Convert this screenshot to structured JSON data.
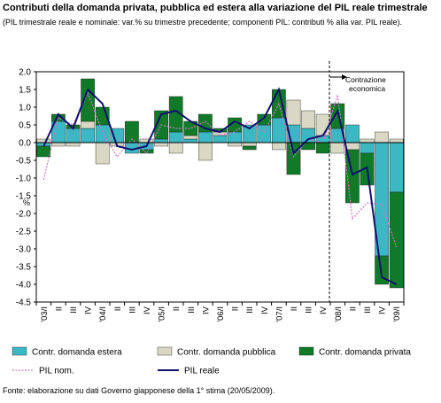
{
  "chart_data": {
    "type": "bar",
    "title": "Contributi della domanda privata, pubblica ed estera alla variazione del PIL reale trimestrale",
    "subtitle": "(PIL trimestrale reale e nominale: var.% su trimestre precedente; componenti PIL: contributi % alla var. PIL reale).",
    "ylabel": "%",
    "ylim": [
      -4.5,
      2.0
    ],
    "yticks": [
      "2.0",
      "1.5",
      "1.0",
      "0.5",
      "0.0",
      "-0.5",
      "-1.0",
      "-1.5",
      "-2.0",
      "-2.5",
      "-3.0",
      "-3.5",
      "-4.0",
      "-4.5"
    ],
    "categories": [
      "'03/I",
      "II",
      "III",
      "IV",
      "'04/I",
      "II",
      "III",
      "IV",
      "'05/I",
      "II",
      "III",
      "IV",
      "'06/I",
      "II",
      "III",
      "IV",
      "'07/I",
      "II",
      "III",
      "IV",
      "'08/I",
      "II",
      "III",
      "IV",
      "'09/I"
    ],
    "series": [
      {
        "name": "Contr. domanda estera",
        "color": "#3cb8c4",
        "kind": "bar",
        "values": [
          -0.1,
          0.6,
          0.4,
          0.4,
          0.5,
          0.4,
          -0.3,
          -0.2,
          0.1,
          0.3,
          0.1,
          0.3,
          0.2,
          0.3,
          0.5,
          0.5,
          0.7,
          0.5,
          0.4,
          0.2,
          0.4,
          0.5,
          -0.3,
          -3.2,
          -1.4
        ]
      },
      {
        "name": "Contr. domanda pubblica",
        "color": "#d8d8c4",
        "kind": "bar",
        "values": [
          0.1,
          -0.1,
          -0.1,
          0.2,
          -0.6,
          -0.1,
          0.0,
          0.1,
          -0.1,
          -0.3,
          0.1,
          -0.5,
          0.1,
          -0.1,
          -0.1,
          0.0,
          -0.2,
          0.7,
          0.5,
          0.6,
          -0.3,
          -0.2,
          0.1,
          0.3,
          0.1
        ]
      },
      {
        "name": "Contr. domanda privata",
        "color": "#107a28",
        "kind": "bar",
        "values": [
          -0.3,
          0.2,
          0.1,
          1.2,
          0.5,
          0.0,
          0.6,
          -0.1,
          0.8,
          1.0,
          0.4,
          0.5,
          0.1,
          0.4,
          -0.1,
          0.3,
          0.8,
          -0.9,
          -0.2,
          -0.3,
          0.7,
          -1.5,
          -0.9,
          -0.8,
          -2.7
        ]
      },
      {
        "name": "PIL nom.",
        "color": "#c878c8",
        "kind": "line",
        "values": [
          -1.05,
          0.7,
          0.5,
          1.4,
          0.3,
          -0.4,
          0.1,
          -0.3,
          0.5,
          0.4,
          0.4,
          0.6,
          0.2,
          0.3,
          0.6,
          0.3,
          1.1,
          -0.4,
          0.1,
          0.0,
          1.35,
          -2.15,
          -1.7,
          -1.75,
          -2.95
        ]
      },
      {
        "name": "PIL reale",
        "color": "#101070",
        "kind": "line",
        "values": [
          -0.1,
          0.8,
          0.4,
          1.5,
          1.1,
          -0.1,
          -0.2,
          -0.1,
          0.8,
          0.9,
          0.6,
          0.4,
          0.3,
          0.6,
          0.4,
          0.7,
          1.5,
          -0.3,
          0.1,
          0.2,
          0.9,
          -0.9,
          -0.7,
          -3.8,
          -4.0
        ]
      }
    ],
    "annotation": {
      "text_line1": "Contrazione",
      "text_line2": "economica"
    },
    "source": "Fonte: elaborazione su dati Governo giapponese della 1° stima (20/05/2009)."
  }
}
